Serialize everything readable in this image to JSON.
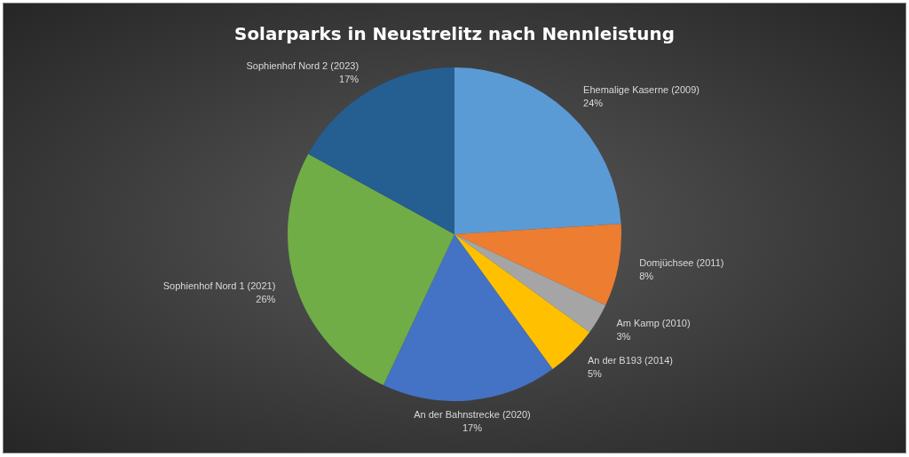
{
  "chart_data": {
    "type": "pie",
    "title": "Solarparks in Neustrelitz nach Nennleistung",
    "categories": [
      "Ehemalige Kaserne (2009)",
      "Domjüchsee (2011)",
      "Am Kamp (2010)",
      "An der B193 (2014)",
      "An der Bahnstrecke (2020)",
      "Sophienhof Nord 1 (2021)",
      "Sophienhof Nord 2 (2023)"
    ],
    "values": [
      24,
      8,
      3,
      5,
      17,
      26,
      17
    ],
    "colors": [
      "#5b9bd5",
      "#ed7d31",
      "#a5a5a5",
      "#ffc000",
      "#4472c4",
      "#70ad47",
      "#255e91"
    ],
    "value_labels": [
      "24%",
      "8%",
      "3%",
      "5%",
      "17%",
      "26%",
      "17%"
    ],
    "legend": false
  }
}
